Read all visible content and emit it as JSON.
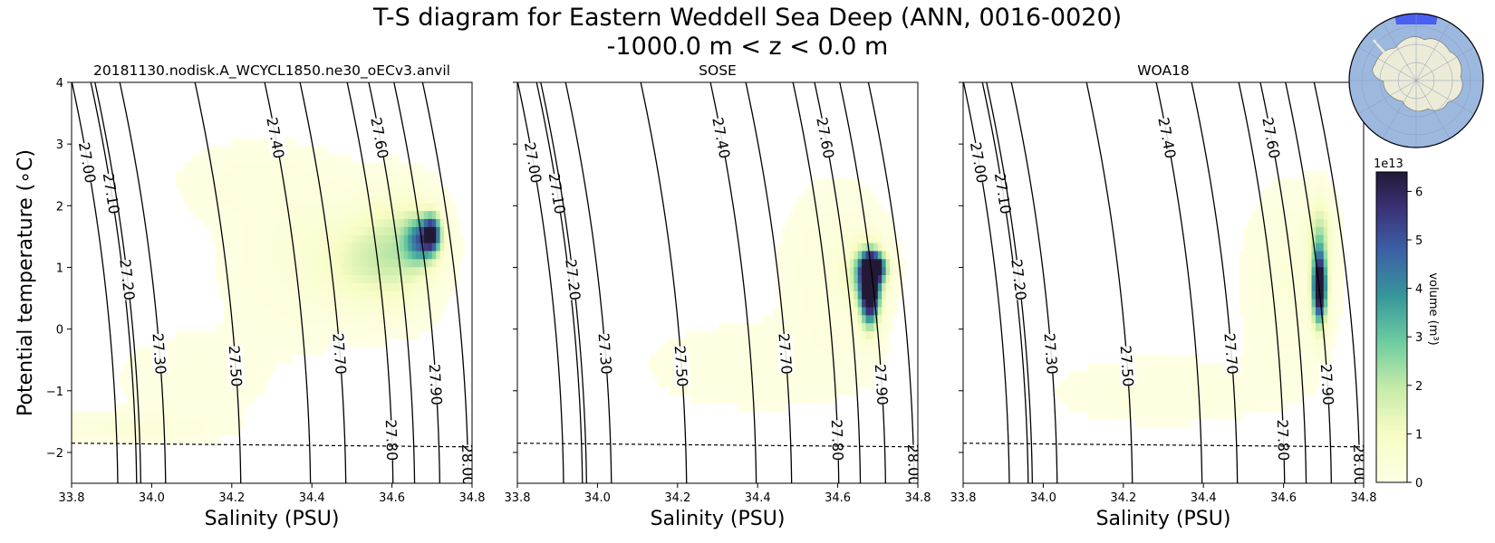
{
  "title_line1": "T-S diagram for Eastern Weddell Sea Deep (ANN, 0016-0020)",
  "title_line2": "-1000.0 m < z < 0.0 m",
  "chart_data": {
    "type": "heatmap",
    "xlabel": "Salinity (PSU)",
    "ylabel": "Potential temperature (∘C)",
    "xlim": [
      33.8,
      34.8
    ],
    "ylim": [
      -2.5,
      4
    ],
    "xticks": [
      "33.8",
      "34.0",
      "34.2",
      "34.4",
      "34.6",
      "34.8"
    ],
    "yticks": [
      "−2",
      "−1",
      "0",
      "1",
      "2",
      "3",
      "4"
    ],
    "freezing_line": {
      "s": [
        33.8,
        34.8
      ],
      "t": [
        -1.85,
        -1.91
      ],
      "style": "dashed"
    },
    "density_contours": [
      {
        "label": "27.00",
        "s0": 33.84,
        "t0": 2.7
      },
      {
        "label": "27.10",
        "s0": 33.9,
        "t0": 2.2
      },
      {
        "label": "27.20",
        "s0": 33.94,
        "t0": 0.8
      },
      {
        "label": "27.30",
        "s0": 34.02,
        "t0": -0.4
      },
      {
        "label": "27.40",
        "s0": 34.31,
        "t0": 3.1
      },
      {
        "label": "27.50",
        "s0": 34.21,
        "t0": -0.6
      },
      {
        "label": "27.60",
        "s0": 34.57,
        "t0": 3.1
      },
      {
        "label": "27.70",
        "s0": 34.47,
        "t0": -0.4
      },
      {
        "label": "27.80",
        "s0": 34.6,
        "t0": -1.8
      },
      {
        "label": "27.90",
        "s0": 34.71,
        "t0": -0.9
      },
      {
        "label": "28.00",
        "s0": 34.79,
        "t0": -2.2
      }
    ],
    "panels": [
      {
        "title": "20181130.nodisk.A_WCYCL1850.ne30_oECv3.anvil",
        "blobs": [
          {
            "s": 34.4,
            "t": 1.2,
            "ss": 0.12,
            "st": 0.75,
            "v": 0.45
          },
          {
            "s": 34.25,
            "t": 2.4,
            "ss": 0.12,
            "st": 0.4,
            "v": 0.2
          },
          {
            "s": 33.95,
            "t": -1.6,
            "ss": 0.12,
            "st": 0.14,
            "v": 0.4
          },
          {
            "s": 34.1,
            "t": -0.8,
            "ss": 0.15,
            "st": 0.6,
            "v": 0.12
          },
          {
            "s": 34.62,
            "t": 1.3,
            "ss": 0.06,
            "st": 0.55,
            "v": 1.7
          },
          {
            "s": 34.52,
            "t": 1.1,
            "ss": 0.06,
            "st": 0.45,
            "v": 0.9
          },
          {
            "s": 34.67,
            "t": 1.45,
            "ss": 0.025,
            "st": 0.25,
            "v": 3.5
          },
          {
            "s": 34.7,
            "t": 1.55,
            "ss": 0.015,
            "st": 0.2,
            "v": 5.5
          }
        ]
      },
      {
        "title": "SOSE",
        "blobs": [
          {
            "s": 34.6,
            "t": 1.0,
            "ss": 0.08,
            "st": 0.8,
            "v": 0.35
          },
          {
            "s": 34.4,
            "t": -0.6,
            "ss": 0.2,
            "st": 0.5,
            "v": 0.15
          },
          {
            "s": 34.67,
            "t": 0.9,
            "ss": 0.03,
            "st": 0.3,
            "v": 2.5
          },
          {
            "s": 34.68,
            "t": 0.6,
            "ss": 0.016,
            "st": 0.35,
            "v": 8.0
          },
          {
            "s": 34.69,
            "t": 1.0,
            "ss": 0.02,
            "st": 0.15,
            "v": 6.5
          }
        ]
      },
      {
        "title": "WOA18",
        "blobs": [
          {
            "s": 34.62,
            "t": 0.8,
            "ss": 0.07,
            "st": 0.9,
            "v": 0.35
          },
          {
            "s": 34.3,
            "t": -1.0,
            "ss": 0.2,
            "st": 0.4,
            "v": 0.15
          },
          {
            "s": 34.69,
            "t": 1.6,
            "ss": 0.02,
            "st": 0.35,
            "v": 1.6
          },
          {
            "s": 34.69,
            "t": 0.7,
            "ss": 0.012,
            "st": 0.4,
            "v": 8.0
          }
        ]
      }
    ],
    "colorbar": {
      "label": "volume (m³)",
      "exponent": "1e13",
      "range": [
        0,
        6.4
      ],
      "ticks": [
        "0",
        "1",
        "2",
        "3",
        "4",
        "5",
        "6"
      ]
    }
  },
  "inset_map": {
    "ocean_color": "#9cb8df",
    "land_color": "#ecebd8",
    "region_color": "#4a5ff0"
  }
}
